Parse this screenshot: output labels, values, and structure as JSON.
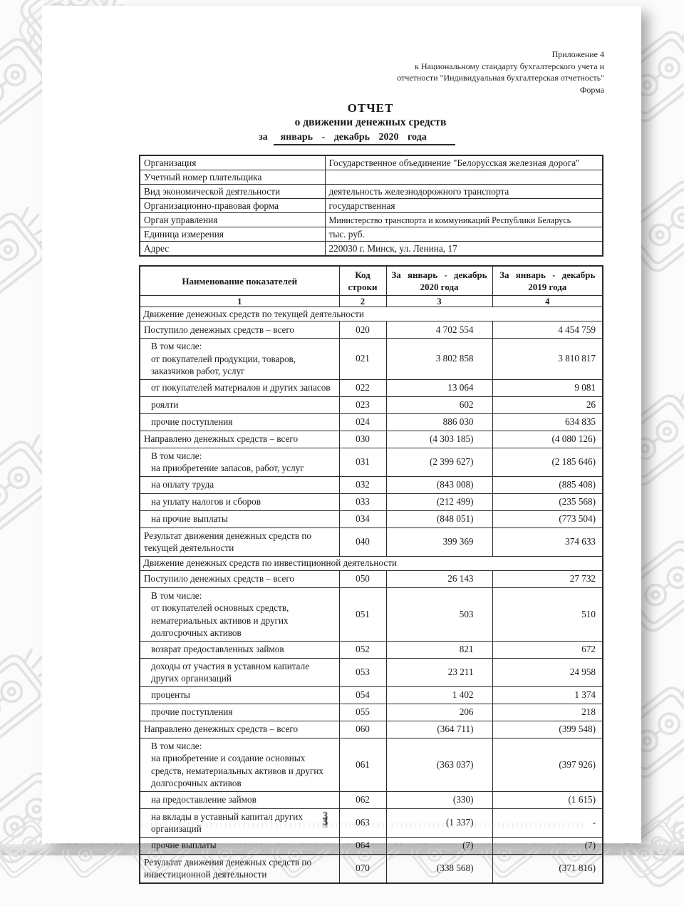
{
  "colors": {
    "ink": "#1a1a1a",
    "pattern": "#e4e4e4"
  },
  "decor": {
    "pattern_icon_name": "retro-device-line-icon"
  },
  "header": {
    "appendix_lines": [
      "Приложение 4",
      "к Национальному стандарту бухгалтерского учета и",
      "отчетности \"Индивидуальная бухгалтерская отчетность\"",
      "Форма"
    ],
    "title_line1": "ОТЧЕТ",
    "title_line2": "о движении денежных средств",
    "period_prefix": "за",
    "period_value": "январь - декабрь 2020 года"
  },
  "org_table": {
    "rows": [
      {
        "label": "Организация",
        "value": "Государственное объединение \"Белорусская железная дорога\""
      },
      {
        "label": "Учетный номер плательщика",
        "value": ""
      },
      {
        "label": "Вид экономической деятельности",
        "value": "деятельность железнодорожного транспорта"
      },
      {
        "label": "Организационно-правовая форма",
        "value": "государственная"
      },
      {
        "label": "Орган управления",
        "value": "Министерство транспорта и коммуникаций Республики Беларусь"
      },
      {
        "label": "Единица измерения",
        "value": "тыс. руб."
      },
      {
        "label": "Адрес",
        "value": "220030 г. Минск, ул. Ленина, 17"
      }
    ]
  },
  "main_table": {
    "headers": {
      "name": "Наименование показателей",
      "code_line1": "Код",
      "code_line2": "строки",
      "col2020_line1": "За январь - декабрь",
      "col2020_line2": "2020 года",
      "col2019_line1": "За январь - декабрь",
      "col2019_line2": "2019 года"
    },
    "column_numbers": [
      "1",
      "2",
      "3",
      "4"
    ],
    "rows": [
      {
        "section": "Движение денежных средств по текущей деятельности"
      },
      {
        "lines": [
          "Поступило денежных средств – всего"
        ],
        "indent": false,
        "code": "020",
        "v2020": "4 702 554",
        "v2019": "4 454 759"
      },
      {
        "lines": [
          "В том числе:",
          "от покупателей продукции, товаров,",
          "заказчиков работ, услуг"
        ],
        "indent": true,
        "code": "021",
        "v2020": "3 802 858",
        "v2019": "3 810 817"
      },
      {
        "lines": [
          "от покупателей материалов и других запасов"
        ],
        "indent": true,
        "code": "022",
        "v2020": "13 064",
        "v2019": "9 081"
      },
      {
        "lines": [
          "роялти"
        ],
        "indent": true,
        "code": "023",
        "v2020": "602",
        "v2019": "26"
      },
      {
        "lines": [
          "прочие поступления"
        ],
        "indent": true,
        "code": "024",
        "v2020": "886 030",
        "v2019": "634 835"
      },
      {
        "lines": [
          "Направлено денежных средств – всего"
        ],
        "indent": false,
        "code": "030",
        "v2020": "(4 303 185)",
        "v2019": "(4 080 126)"
      },
      {
        "lines": [
          "В том числе:",
          "на приобретение запасов, работ, услуг"
        ],
        "indent": true,
        "code": "031",
        "v2020": "(2 399 627)",
        "v2019": "(2 185 646)"
      },
      {
        "lines": [
          "на оплату труда"
        ],
        "indent": true,
        "code": "032",
        "v2020": "(843 008)",
        "v2019": "(885 408)"
      },
      {
        "lines": [
          "на уплату налогов и сборов"
        ],
        "indent": true,
        "code": "033",
        "v2020": "(212 499)",
        "v2019": "(235 568)"
      },
      {
        "lines": [
          "на прочие выплаты"
        ],
        "indent": true,
        "code": "034",
        "v2020": "(848 051)",
        "v2019": "(773 504)"
      },
      {
        "lines": [
          "Результат движения денежных средств по",
          "текущей деятельности"
        ],
        "indent": false,
        "code": "040",
        "v2020": "399 369",
        "v2019": "374 633"
      },
      {
        "section": "Движение денежных средств по инвестиционной деятельности"
      },
      {
        "lines": [
          "Поступило денежных средств – всего"
        ],
        "indent": false,
        "code": "050",
        "v2020": "26 143",
        "v2019": "27 732"
      },
      {
        "lines": [
          "В том числе:",
          "от покупателей основных средств,",
          "нематериальных активов и других",
          "долгосрочных активов"
        ],
        "indent": true,
        "code": "051",
        "v2020": "503",
        "v2019": "510"
      },
      {
        "lines": [
          "возврат предоставленных займов"
        ],
        "indent": true,
        "code": "052",
        "v2020": "821",
        "v2019": "672"
      },
      {
        "lines": [
          "доходы от участия в уставном капитале",
          "других организаций"
        ],
        "indent": true,
        "code": "053",
        "v2020": "23 211",
        "v2019": "24 958"
      },
      {
        "lines": [
          "проценты"
        ],
        "indent": true,
        "code": "054",
        "v2020": "1 402",
        "v2019": "1 374"
      },
      {
        "lines": [
          "прочие поступления"
        ],
        "indent": true,
        "code": "055",
        "v2020": "206",
        "v2019": "218"
      },
      {
        "lines": [
          "Направлено денежных средств – всего"
        ],
        "indent": false,
        "code": "060",
        "v2020": "(364 711)",
        "v2019": "(399 548)"
      },
      {
        "lines": [
          "В том числе:",
          "на приобретение и создание основных",
          "средств, нематериальных активов и других",
          "долгосрочных активов"
        ],
        "indent": true,
        "code": "061",
        "v2020": "(363 037)",
        "v2019": "(397 926)"
      },
      {
        "lines": [
          "на предоставление займов"
        ],
        "indent": true,
        "code": "062",
        "v2020": "(330)",
        "v2019": "(1 615)"
      },
      {
        "lines": [
          "на вклады в уставный капитал других",
          "организаций"
        ],
        "indent": true,
        "code": "063",
        "v2020": "(1 337)",
        "v2019": "-"
      },
      {
        "lines": [
          "прочие выплаты"
        ],
        "indent": true,
        "code": "064",
        "v2020": "(7)",
        "v2019": "(7)"
      },
      {
        "lines": [
          "Результат движения денежных средств по",
          "инвестиционной деятельности"
        ],
        "indent": false,
        "code": "070",
        "v2020": "(338 568)",
        "v2019": "(371 816)"
      }
    ]
  },
  "footer": {
    "page_marker": "3"
  }
}
